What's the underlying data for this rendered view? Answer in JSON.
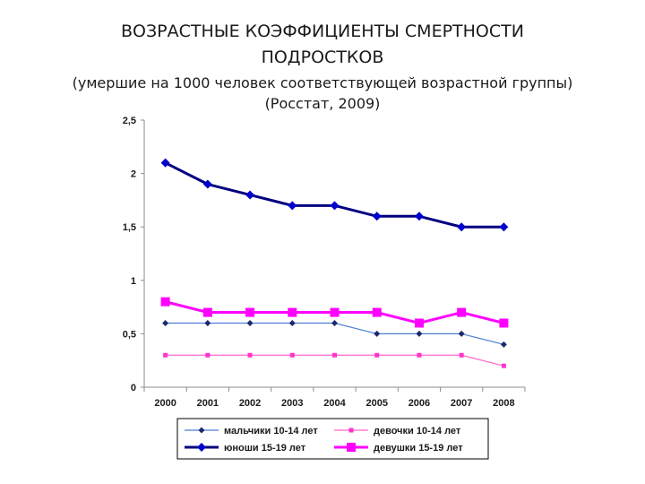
{
  "header": {
    "title_line1": "ВОЗРАСТНЫЕ КОЭФФИЦИЕНТЫ СМЕРТНОСТИ",
    "title_line2": "ПОДРОСТКОВ",
    "subtitle_line1": "(умершие на 1000 человек соответствующей возрастной группы)",
    "subtitle_line2": "(Росстат, 2009)"
  },
  "chart_data": {
    "type": "line",
    "categories": [
      "2000",
      "2001",
      "2002",
      "2003",
      "2004",
      "2005",
      "2006",
      "2007",
      "2008"
    ],
    "ylim": [
      0,
      2.5
    ],
    "yticks": [
      0,
      0.5,
      1,
      1.5,
      2,
      2.5
    ],
    "ytick_labels": [
      "0",
      "0,5",
      "1",
      "1,5",
      "2",
      "2,5"
    ],
    "grid": false,
    "legend_position": "bottom",
    "series": [
      {
        "name": "мальчики 10-14 лет",
        "values": [
          0.6,
          0.6,
          0.6,
          0.6,
          0.6,
          0.5,
          0.5,
          0.5,
          0.4
        ],
        "color": "#4a7fd6",
        "marker_color": "#1a2a6c",
        "marker": "diamond",
        "width": 1.2,
        "marker_size": 3.5
      },
      {
        "name": "девочки 10-14 лет",
        "values": [
          0.3,
          0.3,
          0.3,
          0.3,
          0.3,
          0.3,
          0.3,
          0.3,
          0.2
        ],
        "color": "#ff66cc",
        "marker_color": "#ff33cc",
        "marker": "square",
        "width": 1.2,
        "marker_size": 2.5
      },
      {
        "name": "юноши 15-19 лет",
        "values": [
          2.1,
          1.9,
          1.8,
          1.7,
          1.7,
          1.6,
          1.6,
          1.5,
          1.5
        ],
        "color": "#000080",
        "marker_color": "#0000cc",
        "marker": "diamond",
        "width": 3,
        "marker_size": 5
      },
      {
        "name": "девушки 15-19 лет",
        "values": [
          0.8,
          0.7,
          0.7,
          0.7,
          0.7,
          0.7,
          0.6,
          0.7,
          0.6
        ],
        "color": "#ff00ff",
        "marker_color": "#ff00ff",
        "marker": "square",
        "width": 3,
        "marker_size": 5
      }
    ]
  }
}
